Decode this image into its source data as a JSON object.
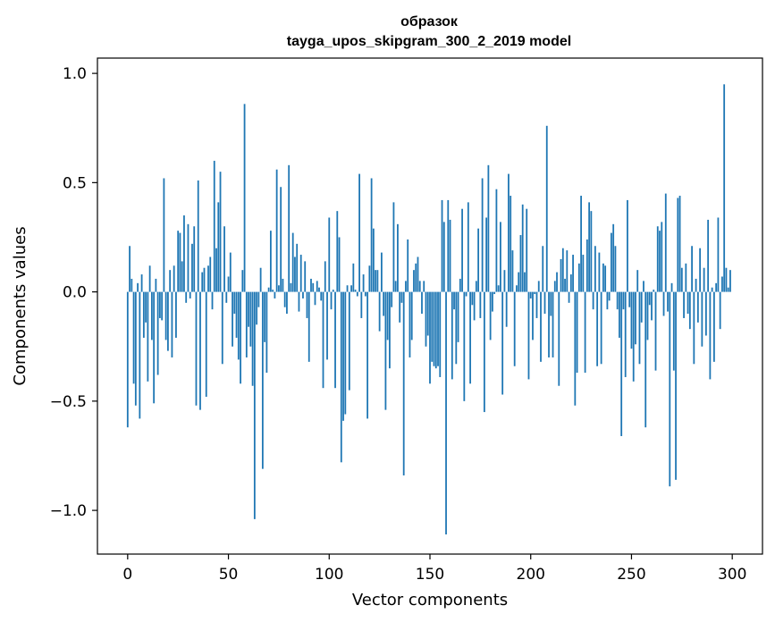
{
  "chart_data": {
    "type": "bar",
    "title": "образок",
    "subtitle": "tayga_upos_skipgram_300_2_2019 model",
    "xlabel": "Vector components",
    "ylabel": "Components values",
    "xlim": [
      -15,
      315
    ],
    "ylim": [
      -1.2,
      1.07
    ],
    "xticks": [
      0,
      50,
      100,
      150,
      200,
      250,
      300
    ],
    "xtick_labels": [
      "0",
      "50",
      "100",
      "150",
      "200",
      "250",
      "300"
    ],
    "yticks": [
      -1.0,
      -0.5,
      0.0,
      0.5,
      1.0
    ],
    "ytick_labels": [
      "−1.0",
      "−0.5",
      "0.0",
      "0.5",
      "1.0"
    ],
    "grid": false,
    "colors": {
      "bar": "#1f77b4",
      "axes": "#000000",
      "background": "#ffffff"
    },
    "series": [
      {
        "x_start": 0,
        "values": [
          -0.62,
          0.21,
          0.06,
          -0.42,
          -0.52,
          0.04,
          -0.58,
          0.08,
          -0.21,
          -0.14,
          -0.41,
          0.12,
          -0.22,
          -0.51,
          0.06,
          -0.38,
          -0.12,
          -0.13,
          0.52,
          -0.22,
          -0.27,
          0.1,
          -0.3,
          0.12,
          -0.21,
          0.28,
          0.27,
          0.14,
          0.35,
          -0.05,
          0.31,
          -0.03,
          0.22,
          0.3,
          -0.52,
          0.51,
          -0.54,
          0.09,
          0.11,
          -0.48,
          0.12,
          0.16,
          -0.08,
          0.6,
          0.2,
          0.41,
          0.55,
          -0.33,
          0.3,
          -0.05,
          0.07,
          0.18,
          -0.25,
          -0.1,
          -0.21,
          -0.31,
          -0.42,
          0.1,
          0.86,
          -0.3,
          -0.16,
          -0.25,
          -0.43,
          -1.04,
          -0.15,
          -0.07,
          0.11,
          -0.81,
          -0.23,
          -0.37,
          0.02,
          0.28,
          0.01,
          -0.03,
          0.56,
          0.03,
          0.48,
          0.06,
          -0.07,
          -0.1,
          0.58,
          0.04,
          0.27,
          0.16,
          0.22,
          -0.09,
          0.17,
          -0.03,
          0.14,
          -0.12,
          -0.32,
          0.06,
          0.04,
          -0.06,
          0.05,
          0.02,
          -0.04,
          -0.44,
          0.14,
          -0.31,
          0.34,
          -0.08,
          0.01,
          -0.44,
          0.37,
          0.25,
          -0.78,
          -0.59,
          -0.56,
          0.03,
          -0.45,
          0.03,
          0.13,
          0.01,
          -0.02,
          0.54,
          -0.12,
          0.08,
          -0.02,
          -0.58,
          0.12,
          0.52,
          0.29,
          0.1,
          0.1,
          -0.18,
          0.18,
          -0.11,
          -0.54,
          -0.22,
          -0.35,
          -0.07,
          0.41,
          0.05,
          0.31,
          -0.14,
          -0.05,
          -0.84,
          0.05,
          0.24,
          -0.3,
          -0.22,
          0.1,
          0.13,
          0.16,
          0.05,
          -0.1,
          0.05,
          -0.25,
          -0.2,
          -0.42,
          -0.32,
          -0.34,
          -0.35,
          -0.34,
          -0.39,
          0.42,
          0.32,
          -1.11,
          0.42,
          0.33,
          -0.4,
          -0.08,
          -0.33,
          -0.23,
          0.06,
          0.38,
          -0.5,
          -0.02,
          0.41,
          -0.42,
          -0.06,
          -0.13,
          0.05,
          0.29,
          -0.12,
          0.52,
          -0.55,
          0.34,
          0.58,
          -0.22,
          -0.09,
          -0.01,
          0.47,
          0.03,
          0.32,
          -0.47,
          0.1,
          -0.16,
          0.54,
          0.44,
          0.19,
          -0.34,
          0.03,
          0.09,
          0.26,
          0.4,
          0.09,
          0.38,
          -0.4,
          -0.03,
          -0.22,
          -0.01,
          -0.12,
          0.05,
          -0.32,
          0.21,
          -0.1,
          0.76,
          -0.3,
          -0.11,
          -0.3,
          0.05,
          0.09,
          -0.43,
          0.15,
          0.2,
          0.06,
          0.19,
          -0.05,
          0.08,
          0.17,
          -0.52,
          -0.37,
          0.13,
          0.44,
          0.17,
          -0.37,
          0.24,
          0.41,
          0.37,
          -0.08,
          0.21,
          -0.34,
          0.18,
          -0.33,
          0.13,
          0.12,
          -0.08,
          -0.04,
          0.27,
          0.31,
          0.21,
          -0.08,
          -0.21,
          -0.66,
          -0.08,
          -0.39,
          0.42,
          -0.07,
          -0.26,
          -0.41,
          -0.24,
          0.1,
          -0.33,
          -0.14,
          0.05,
          -0.62,
          -0.22,
          -0.06,
          -0.13,
          0.01,
          -0.36,
          0.3,
          0.28,
          0.32,
          -0.11,
          0.45,
          -0.09,
          -0.89,
          0.04,
          -0.36,
          -0.86,
          0.43,
          0.44,
          0.11,
          -0.12,
          0.13,
          -0.1,
          -0.17,
          0.21,
          -0.33,
          0.06,
          -0.14,
          0.2,
          -0.25,
          0.11,
          -0.2,
          0.33,
          -0.4,
          0.02,
          -0.32,
          0.04,
          0.34,
          -0.17,
          0.07,
          0.95,
          0.11,
          0.02,
          0.1
        ]
      }
    ]
  }
}
